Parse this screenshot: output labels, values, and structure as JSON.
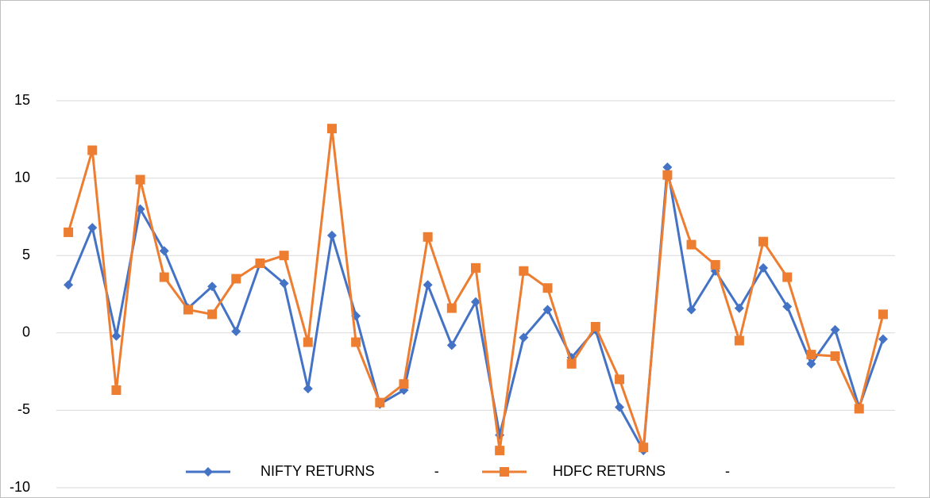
{
  "chart_data": {
    "type": "line",
    "categories": [
      null,
      null,
      null,
      null,
      null,
      null,
      null,
      null,
      null,
      null,
      null,
      null,
      null,
      null,
      null,
      null,
      null,
      null,
      null,
      null,
      null,
      null,
      null,
      null,
      null,
      null,
      null,
      null,
      null,
      null,
      null,
      null,
      null,
      null,
      null
    ],
    "series": [
      {
        "name": "NIFTY RETURNS               -",
        "color": "#4472c4",
        "marker": "diamond",
        "values": [
          3.1,
          6.8,
          -0.2,
          8.0,
          5.3,
          1.6,
          3.0,
          0.1,
          4.5,
          3.2,
          -3.6,
          6.3,
          1.1,
          -4.6,
          -3.7,
          3.1,
          -0.8,
          2.0,
          -6.6,
          -0.3,
          1.5,
          -1.6,
          0.2,
          -4.8,
          -7.6,
          10.7,
          1.5,
          4.0,
          1.6,
          4.2,
          1.7,
          -2.0,
          0.2,
          -4.8,
          -0.4
        ]
      },
      {
        "name": "HDFC RETURNS               -",
        "color": "#ed7d31",
        "marker": "square",
        "values": [
          6.5,
          11.8,
          -3.7,
          9.9,
          3.6,
          1.5,
          1.2,
          3.5,
          4.5,
          5.0,
          -0.6,
          13.2,
          -0.6,
          -4.5,
          -3.3,
          6.2,
          1.6,
          4.2,
          -7.6,
          4.0,
          2.9,
          -2.0,
          0.4,
          -3.0,
          -7.4,
          10.2,
          5.7,
          4.4,
          -0.5,
          5.9,
          3.6,
          -1.4,
          -1.5,
          -4.9,
          1.2
        ]
      }
    ],
    "ylim": [
      -10,
      15
    ],
    "yticks": [
      -10,
      -5,
      0,
      5,
      10,
      15
    ],
    "grid": true,
    "legend": "bottom"
  }
}
